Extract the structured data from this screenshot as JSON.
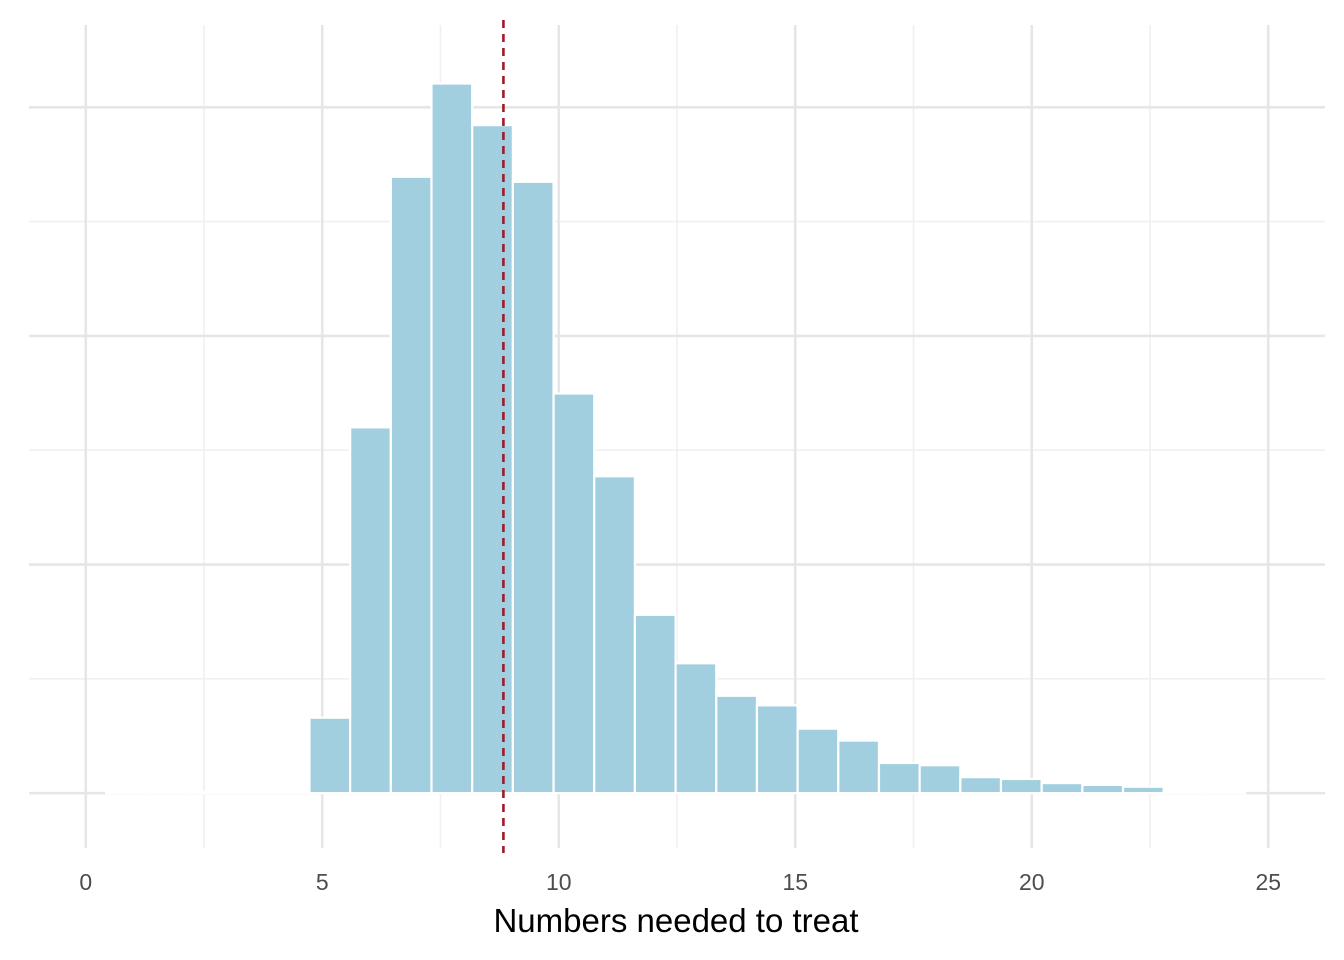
{
  "chart_data": {
    "type": "bar",
    "title": "",
    "xlabel": "Numbers needed to treat",
    "ylabel": "",
    "xlim": [
      -1.2,
      26.2
    ],
    "ylim": [
      -0.012,
      0.168
    ],
    "x_ticks": [
      0,
      5,
      10,
      15,
      20,
      25
    ],
    "x_tick_labels": [
      "0",
      "5",
      "10",
      "15",
      "20",
      "25"
    ],
    "y_ticks_hidden": [
      0,
      0.05,
      0.1,
      0.15
    ],
    "bin_width": 0.86,
    "bins": [
      {
        "x0": 0.43,
        "x1": 1.29,
        "value": 0.0002
      },
      {
        "x0": 1.29,
        "x1": 2.15,
        "value": 0.0002
      },
      {
        "x0": 2.15,
        "x1": 3.01,
        "value": 0.0002
      },
      {
        "x0": 3.01,
        "x1": 3.87,
        "value": 0.0002
      },
      {
        "x0": 3.87,
        "x1": 4.73,
        "value": 0.0001
      },
      {
        "x0": 4.73,
        "x1": 5.59,
        "value": 0.0165
      },
      {
        "x0": 5.59,
        "x1": 6.45,
        "value": 0.08
      },
      {
        "x0": 6.45,
        "x1": 7.31,
        "value": 0.1348
      },
      {
        "x0": 7.31,
        "x1": 8.17,
        "value": 0.1552
      },
      {
        "x0": 8.17,
        "x1": 9.03,
        "value": 0.1461
      },
      {
        "x0": 9.03,
        "x1": 9.89,
        "value": 0.1337
      },
      {
        "x0": 9.89,
        "x1": 10.75,
        "value": 0.0874
      },
      {
        "x0": 10.75,
        "x1": 11.61,
        "value": 0.0693
      },
      {
        "x0": 11.61,
        "x1": 12.47,
        "value": 0.039
      },
      {
        "x0": 12.47,
        "x1": 13.33,
        "value": 0.0284
      },
      {
        "x0": 13.33,
        "x1": 14.19,
        "value": 0.0213
      },
      {
        "x0": 14.19,
        "x1": 15.05,
        "value": 0.0192
      },
      {
        "x0": 15.05,
        "x1": 15.91,
        "value": 0.0141
      },
      {
        "x0": 15.91,
        "x1": 16.77,
        "value": 0.0115
      },
      {
        "x0": 16.77,
        "x1": 17.63,
        "value": 0.0066
      },
      {
        "x0": 17.63,
        "x1": 18.49,
        "value": 0.0061
      },
      {
        "x0": 18.49,
        "x1": 19.35,
        "value": 0.0035
      },
      {
        "x0": 19.35,
        "x1": 20.21,
        "value": 0.0031
      },
      {
        "x0": 20.21,
        "x1": 21.07,
        "value": 0.0022
      },
      {
        "x0": 21.07,
        "x1": 21.93,
        "value": 0.0018
      },
      {
        "x0": 21.93,
        "x1": 22.79,
        "value": 0.0014
      },
      {
        "x0": 22.79,
        "x1": 23.65,
        "value": 0.0004
      },
      {
        "x0": 23.65,
        "x1": 24.51,
        "value": 0.0003
      }
    ],
    "reference_line": {
      "x": 8.83,
      "style": "dashed"
    },
    "grid": true,
    "legend": "none",
    "colors": {
      "bar_fill": "#a1cfe0",
      "bar_outline": "#ffffff",
      "reference_line": "#9b1c2a",
      "grid_major": "#e6e6e6",
      "grid_minor": "#f0f0f0"
    }
  }
}
